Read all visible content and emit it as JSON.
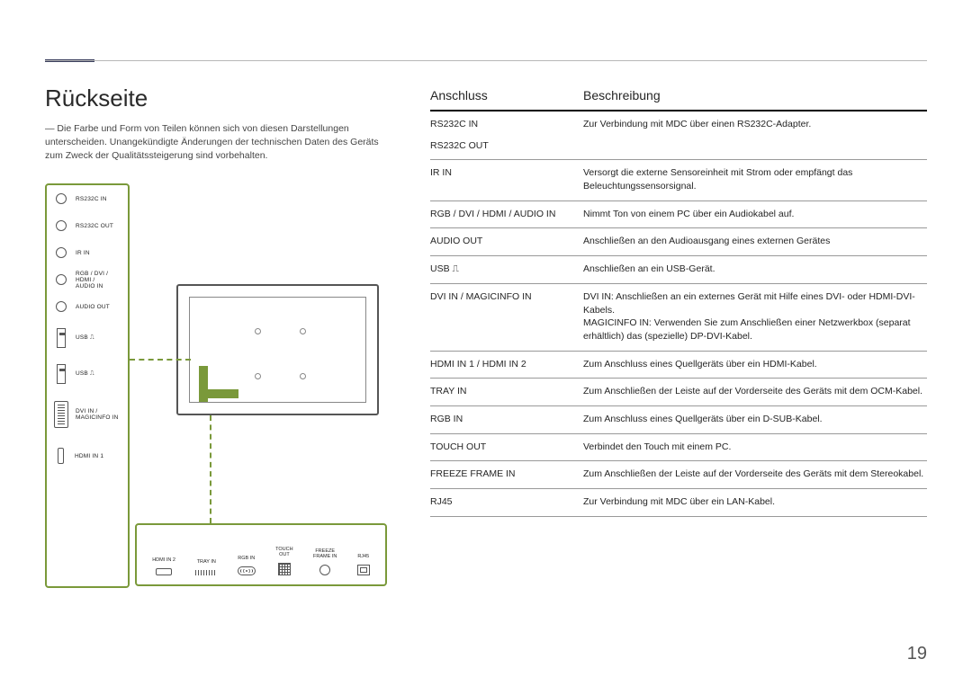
{
  "heading": "Rückseite",
  "note": "Die Farbe und Form von Teilen können sich von diesen Darstellungen unterscheiden. Unangekündigte Änderungen der technischen Daten des Geräts zum Zweck der Qualitätssteigerung sind vorbehalten.",
  "page_number": "19",
  "table": {
    "header": {
      "port": "Anschluss",
      "desc": "Beschreibung"
    },
    "rows": [
      {
        "port": "RS232C IN",
        "desc": "Zur Verbindung mit MDC über einen RS232C-Adapter.",
        "noborder": true
      },
      {
        "port": "RS232C OUT",
        "desc": ""
      },
      {
        "port": "IR IN",
        "desc": "Versorgt die externe Sensoreinheit mit Strom oder empfängt das Beleuchtungssensorsignal."
      },
      {
        "port": "RGB / DVI / HDMI / AUDIO IN",
        "desc": "Nimmt Ton von einem PC über ein Audiokabel auf."
      },
      {
        "port": "AUDIO OUT",
        "desc": "Anschließen an den Audioausgang eines externen Gerätes"
      },
      {
        "port": "USB ⎍",
        "desc": "Anschließen an ein USB-Gerät."
      },
      {
        "port": "DVI IN / MAGICINFO IN",
        "desc": "DVI IN: Anschließen an ein externes Gerät mit Hilfe eines DVI- oder HDMI-DVI-Kabels.\nMAGICINFO IN: Verwenden Sie zum Anschließen einer Netzwerkbox (separat erhältlich) das (spezielle) DP-DVI-Kabel."
      },
      {
        "port": "HDMI IN 1 / HDMI IN 2",
        "desc": "Zum Anschluss eines Quellgeräts über ein HDMI-Kabel."
      },
      {
        "port": "TRAY IN",
        "desc": "Zum Anschließen der Leiste auf der Vorderseite des Geräts mit dem OCM-Kabel."
      },
      {
        "port": "RGB IN",
        "desc": "Zum Anschluss eines Quellgeräts über ein D-SUB-Kabel."
      },
      {
        "port": "TOUCH OUT",
        "desc": "Verbindet den Touch mit einem PC."
      },
      {
        "port": "FREEZE FRAME IN",
        "desc": "Zum Anschließen der Leiste auf der Vorderseite des Geräts mit dem Stereokabel."
      },
      {
        "port": "RJ45",
        "desc": "Zur Verbindung mit MDC über ein LAN-Kabel."
      }
    ]
  },
  "left_ports": [
    {
      "type": "circle",
      "label": "RS232C IN"
    },
    {
      "type": "circle",
      "label": "RS232C OUT"
    },
    {
      "type": "circle",
      "label": "IR IN"
    },
    {
      "type": "circle",
      "label": "RGB / DVI /\nHDMI /\nAUDIO IN"
    },
    {
      "type": "circle",
      "label": "AUDIO OUT"
    },
    {
      "type": "usb",
      "label": "USB ⎍"
    },
    {
      "type": "usb",
      "label": "USB ⎍"
    },
    {
      "type": "dvi",
      "label": "DVI IN /\nMAGICINFO IN"
    },
    {
      "type": "hdmi",
      "label": "HDMI IN 1"
    }
  ],
  "strip_ports": [
    {
      "icon": "hdmi",
      "label": "HDMI IN 2"
    },
    {
      "icon": "tray",
      "label": "TRAY IN"
    },
    {
      "icon": "vga",
      "label": "RGB IN"
    },
    {
      "icon": "grid",
      "label": "TOUCH\nOUT"
    },
    {
      "icon": "circ",
      "label": "FREEZE\nFRAME IN"
    },
    {
      "icon": "rj45",
      "label": "RJ45"
    }
  ],
  "colors": {
    "accent_green": "#7a993a",
    "accent_navy": "#363a5a",
    "rule": "#b8b8b8",
    "text": "#252525"
  }
}
